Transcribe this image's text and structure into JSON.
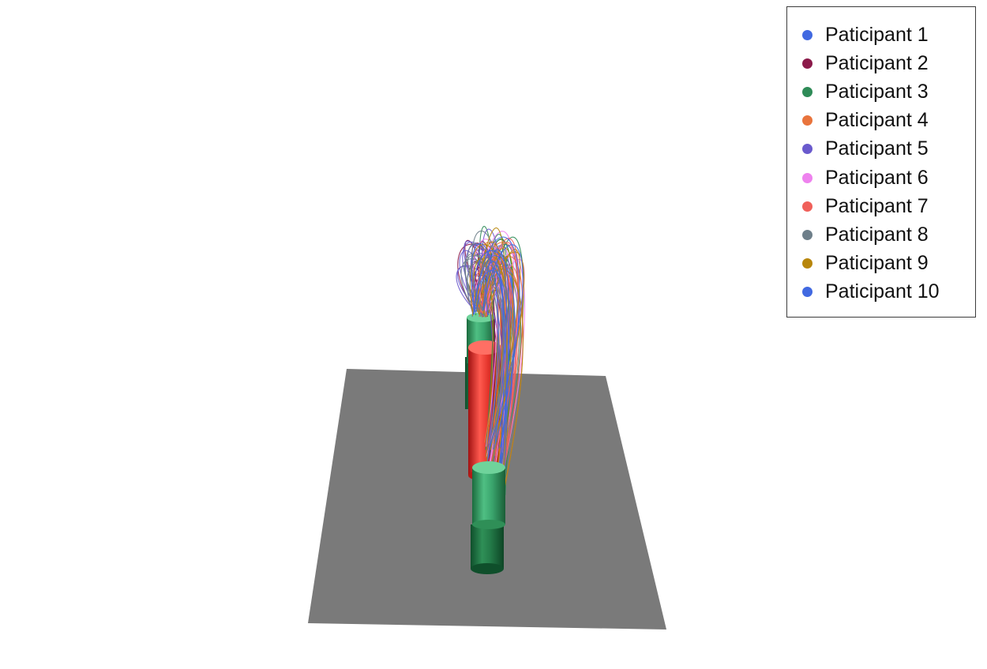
{
  "chart_data": {
    "type": "3d-trajectory",
    "title": "",
    "legend_placement": "top-right",
    "series": [
      {
        "name": "Paticipant 1",
        "color": "#4169e1"
      },
      {
        "name": "Paticipant 2",
        "color": "#8b1a4a"
      },
      {
        "name": "Paticipant 3",
        "color": "#2e8b57"
      },
      {
        "name": "Paticipant 4",
        "color": "#e9743c"
      },
      {
        "name": "Paticipant 5",
        "color": "#6a5acd"
      },
      {
        "name": "Paticipant 6",
        "color": "#ee82ee"
      },
      {
        "name": "Paticipant 7",
        "color": "#f0605a"
      },
      {
        "name": "Paticipant 8",
        "color": "#6e7f8a"
      },
      {
        "name": "Paticipant 9",
        "color": "#b8860b"
      },
      {
        "name": "Paticipant 10",
        "color": "#4169e1"
      }
    ],
    "scene_objects": [
      {
        "name": "floor-plane",
        "color": "#7a7a7a"
      },
      {
        "name": "start-cylinder",
        "color": "#2e8b57"
      },
      {
        "name": "obstacle-cylinder",
        "color": "#e53935"
      },
      {
        "name": "target-cylinder",
        "color": "#2e8b57"
      }
    ]
  }
}
